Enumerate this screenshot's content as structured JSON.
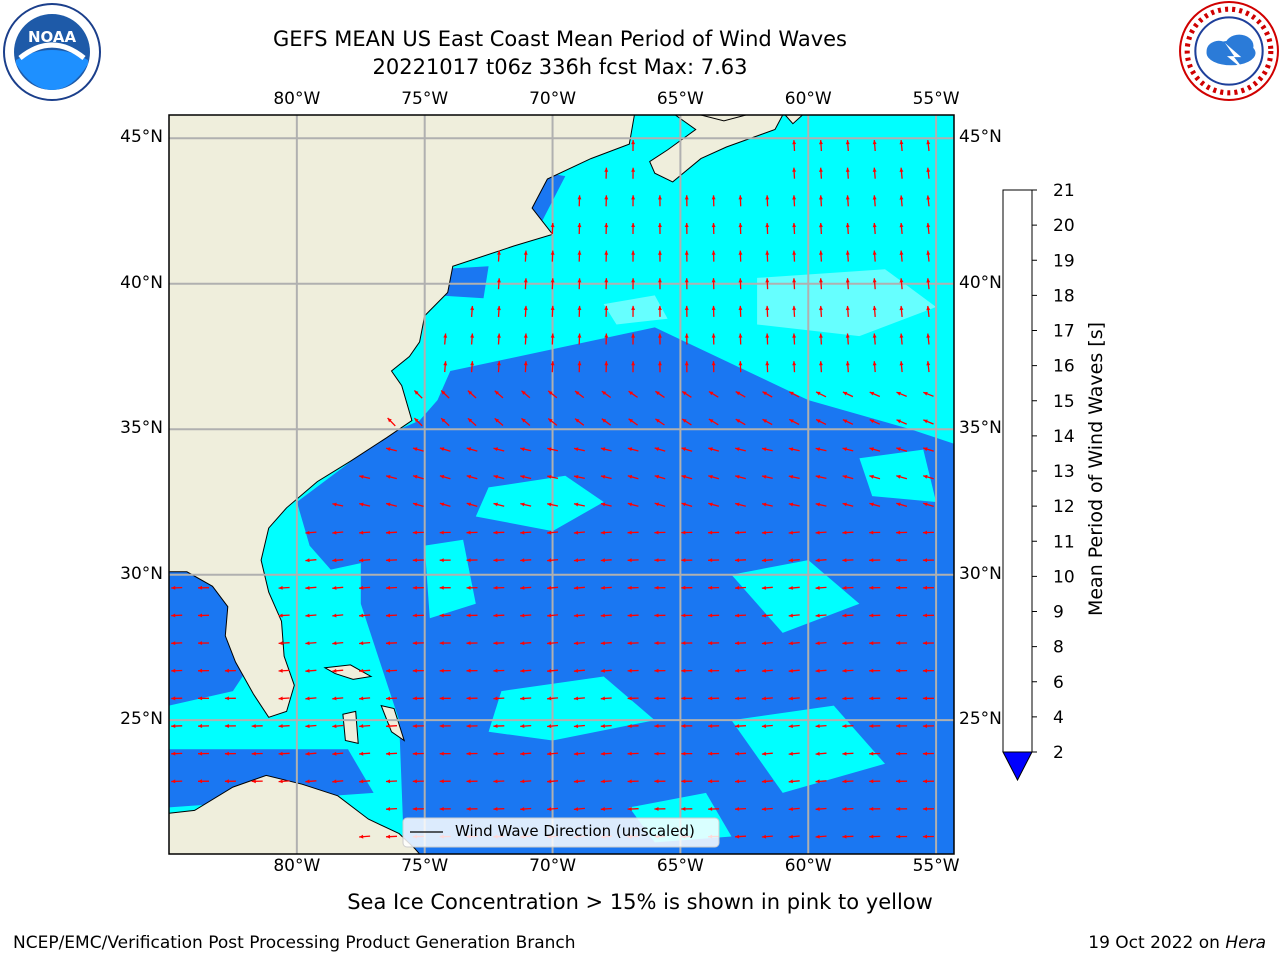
{
  "title_line1": "GEFS MEAN US East Coast Mean Period of Wind Waves",
  "title_line2": "20221017 t06z 336h fcst   Max: 7.63",
  "caption": "Sea Ice Concentration > 15% is shown in pink to yellow",
  "footer_left": "NCEP/EMC/Verification Post Processing Product Generation Branch",
  "footer_right_date": "19 Oct 2022 on ",
  "footer_right_host": "Hera",
  "legend_label": "Wind Wave Direction (unscaled)",
  "logos": {
    "left": "noaa-logo",
    "right": "nws-logo"
  },
  "map": {
    "lon_range": [
      -85,
      -54.3
    ],
    "lat_range": [
      20.4,
      45.8
    ],
    "lon_ticks": [
      "80°W",
      "75°W",
      "70°W",
      "65°W",
      "60°W",
      "55°W"
    ],
    "lon_tick_values": [
      -80,
      -75,
      -70,
      -65,
      -60,
      -55
    ],
    "lat_ticks": [
      "25°N",
      "30°N",
      "35°N",
      "40°N",
      "45°N"
    ],
    "lat_tick_values": [
      25,
      30,
      35,
      40,
      45
    ],
    "colors": {
      "land": "#efeedc",
      "ocean_low": "#1a77f2",
      "ocean_mid": "#00ffff",
      "ocean_high": "#66ffff",
      "arrow": "#ff0000",
      "grid": "#b0b0b0"
    }
  },
  "colorbar": {
    "label": "Mean Period of Wind Waves [s]",
    "ticks": [
      "2",
      "4",
      "6",
      "8",
      "9",
      "10",
      "11",
      "12",
      "13",
      "14",
      "15",
      "16",
      "17",
      "18",
      "19",
      "20",
      "21"
    ],
    "colors": [
      "#0075ff",
      "#00ffff",
      "#40ffff",
      "#99ffff",
      "#4dff80",
      "#00ff00",
      "#55e600",
      "#a0e600",
      "#ccff00",
      "#e6ff00",
      "#ffff00",
      "#ffdd00",
      "#ffb300",
      "#ff8800",
      "#ff5500",
      "#ff2200",
      "#ff0000"
    ],
    "under_color": "#0000ff"
  }
}
